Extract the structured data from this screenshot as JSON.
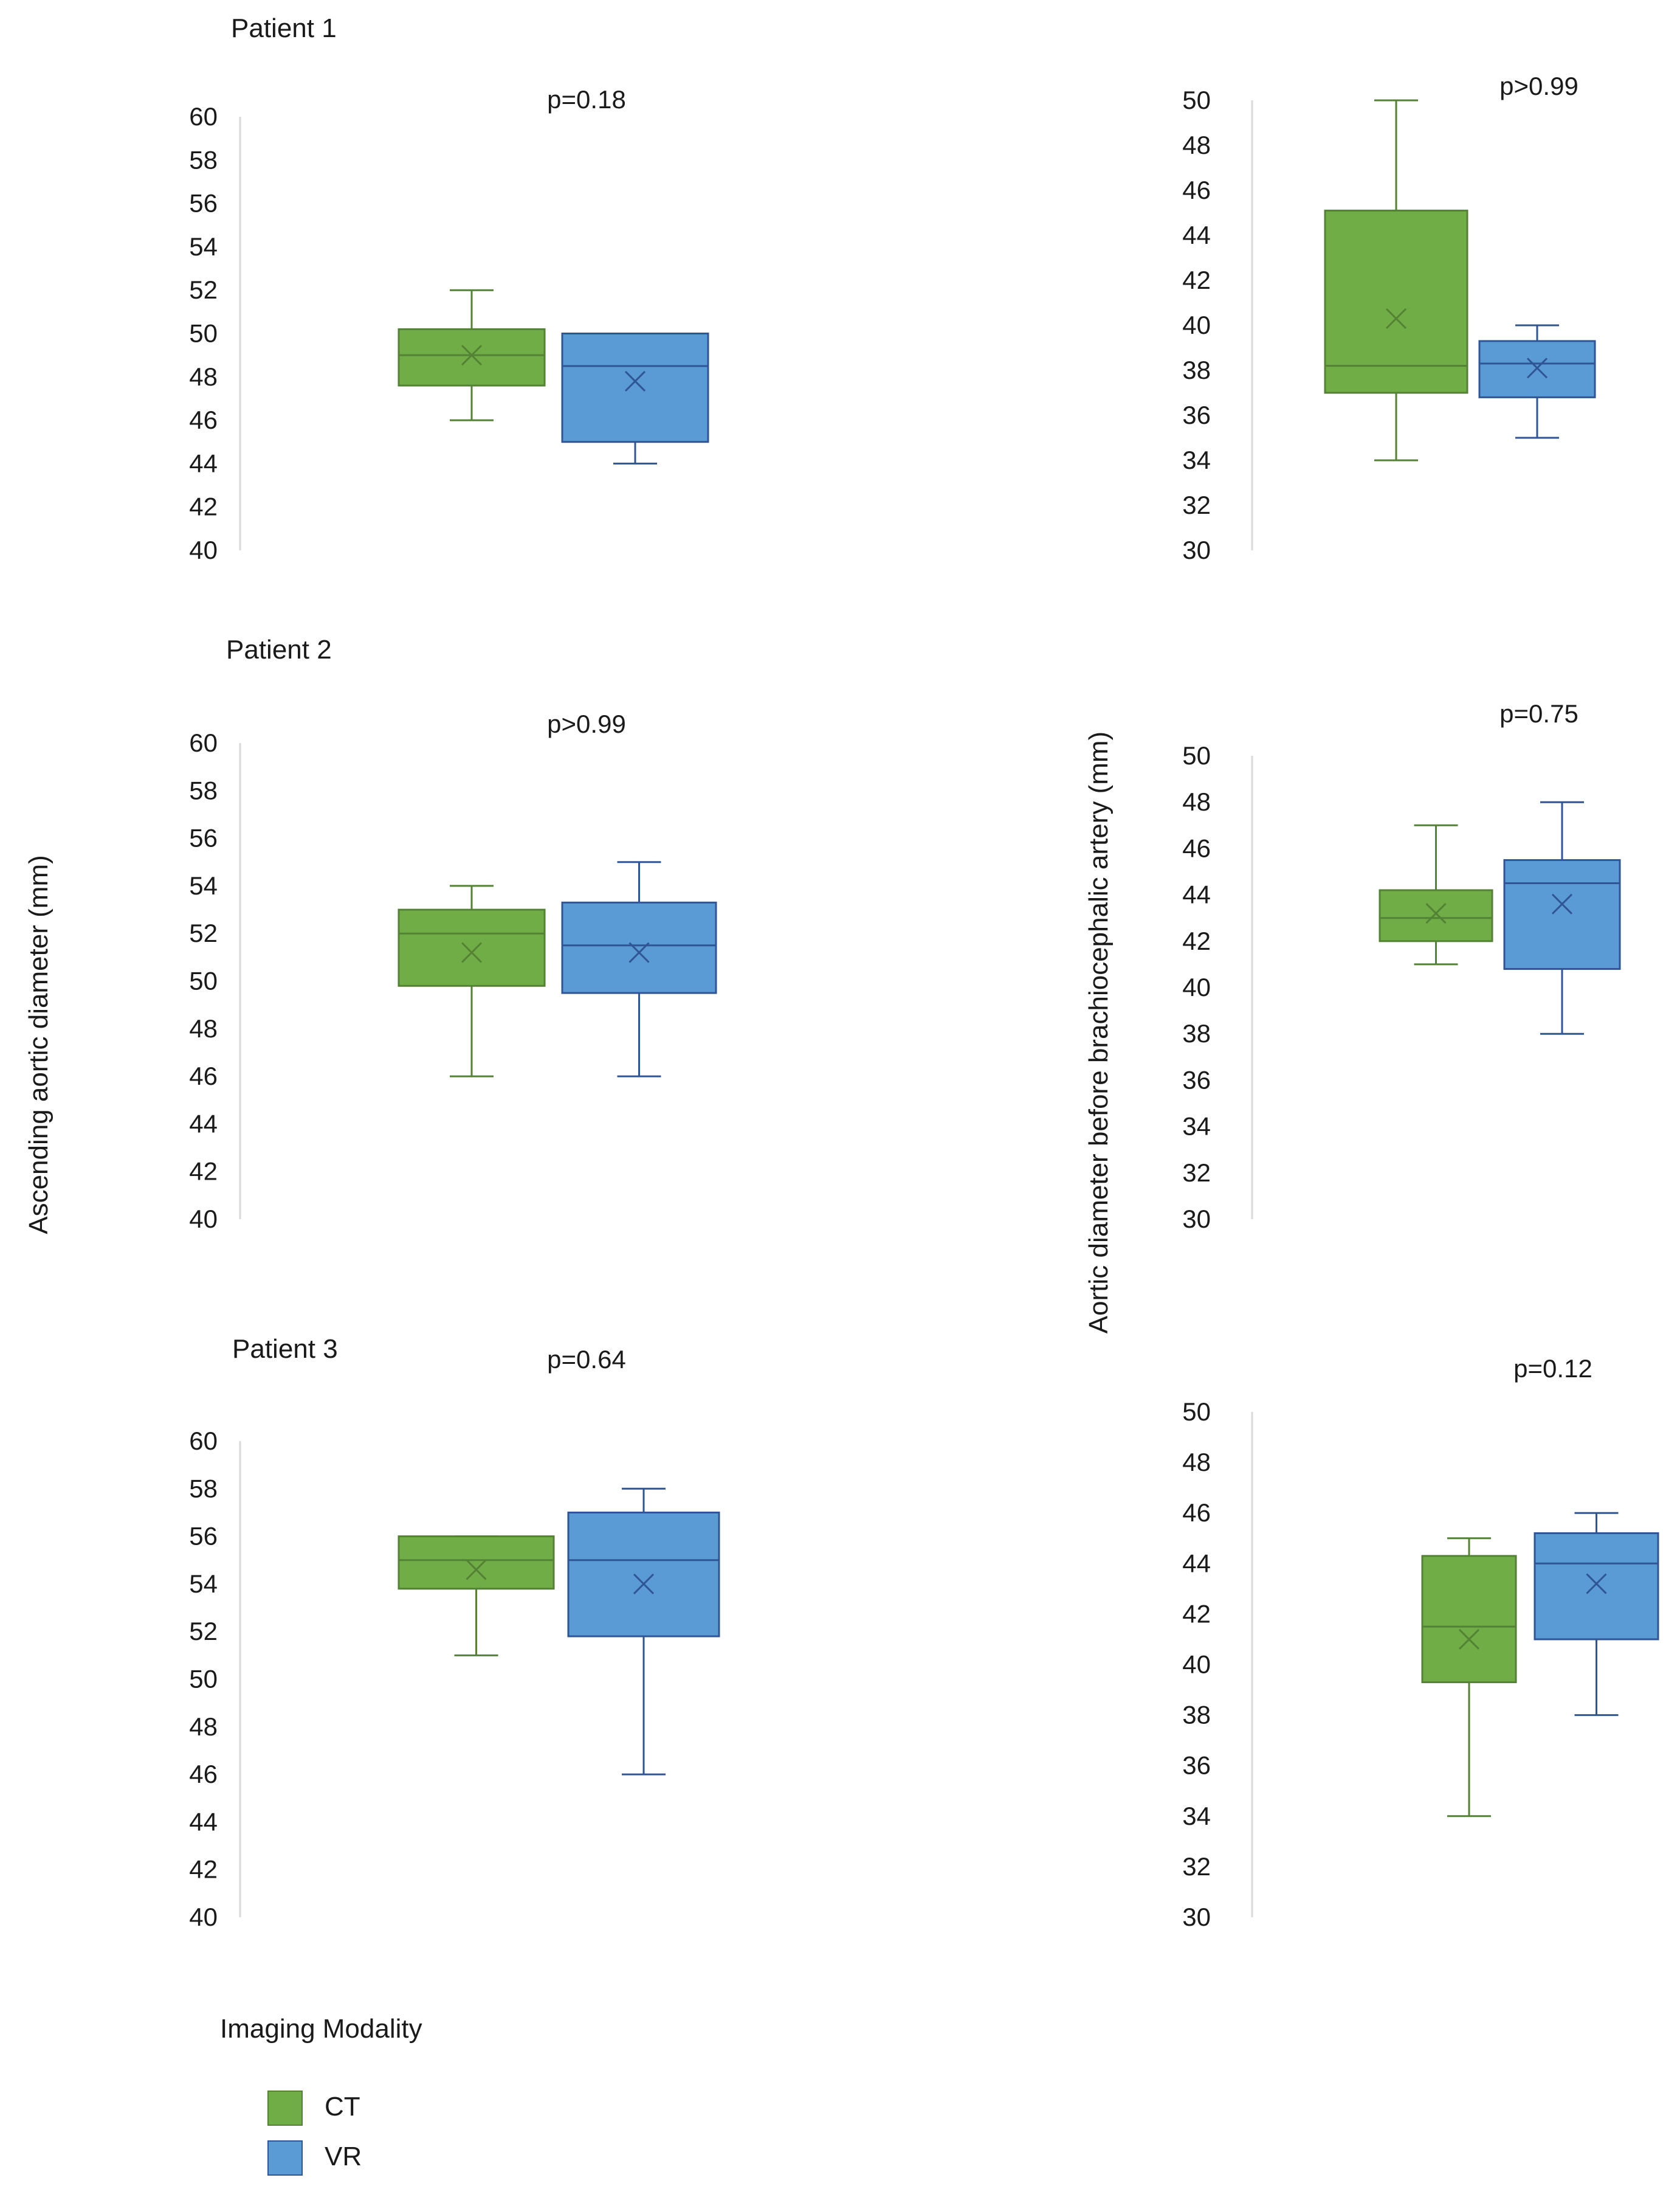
{
  "figure": {
    "left_ylabel": "Ascending aortic diameter (mm)",
    "right_ylabel": "Aortic diameter before brachiocephalic artery (mm)",
    "legend": {
      "title": "Imaging Modality",
      "items": [
        {
          "label": "CT",
          "color": "#70ad47",
          "edge": "#548235"
        },
        {
          "label": "VR",
          "color": "#5b9bd5",
          "edge": "#2f5597"
        }
      ]
    },
    "patients": [
      "Patient 1",
      "Patient 2",
      "Patient 3"
    ]
  },
  "chart_data": [
    {
      "type": "box",
      "panel": "Patient 1 - ascending",
      "annotation": "p=0.18",
      "ylabel": "Ascending aortic diameter (mm)",
      "ylim": [
        40,
        60
      ],
      "yticks": [
        40,
        42,
        44,
        46,
        48,
        50,
        52,
        54,
        56,
        58,
        60
      ],
      "series": [
        {
          "name": "CT",
          "min": 46,
          "q1": 47.6,
          "median": 49,
          "q3": 50.2,
          "max": 52,
          "mean": 49
        },
        {
          "name": "VR",
          "min": 44,
          "q1": 45,
          "median": 48.5,
          "q3": 50,
          "max": 50,
          "mean": 47.8
        }
      ]
    },
    {
      "type": "box",
      "panel": "Patient 1 - before brachiocephalic",
      "annotation": "p>0.99",
      "ylabel": "Aortic diameter before brachiocephalic artery (mm)",
      "ylim": [
        30,
        50
      ],
      "yticks": [
        30,
        32,
        34,
        36,
        38,
        40,
        42,
        44,
        46,
        48,
        50
      ],
      "series": [
        {
          "name": "CT",
          "min": 34,
          "q1": 37,
          "median": 38.2,
          "q3": 45.1,
          "max": 50,
          "mean": 40.3
        },
        {
          "name": "VR",
          "min": 35,
          "q1": 36.8,
          "median": 38.3,
          "q3": 39.3,
          "max": 40,
          "mean": 38.1
        }
      ]
    },
    {
      "type": "box",
      "panel": "Patient 2 - ascending",
      "annotation": "p>0.99",
      "ylabel": "Ascending aortic diameter (mm)",
      "ylim": [
        40,
        60
      ],
      "yticks": [
        40,
        42,
        44,
        46,
        48,
        50,
        52,
        54,
        56,
        58,
        60
      ],
      "series": [
        {
          "name": "CT",
          "min": 46,
          "q1": 49.8,
          "median": 52,
          "q3": 53,
          "max": 54,
          "mean": 51.2
        },
        {
          "name": "VR",
          "min": 46,
          "q1": 49.5,
          "median": 51.5,
          "q3": 53.3,
          "max": 55,
          "mean": 51.2
        }
      ]
    },
    {
      "type": "box",
      "panel": "Patient 2 - before brachiocephalic",
      "annotation": "p=0.75",
      "ylabel": "Aortic diameter before brachiocephalic artery (mm)",
      "ylim": [
        30,
        50
      ],
      "yticks": [
        30,
        32,
        34,
        36,
        38,
        40,
        42,
        44,
        46,
        48,
        50
      ],
      "series": [
        {
          "name": "CT",
          "min": 41,
          "q1": 42,
          "median": 43,
          "q3": 44.2,
          "max": 47,
          "mean": 43.2
        },
        {
          "name": "VR",
          "min": 38,
          "q1": 40.8,
          "median": 44.5,
          "q3": 45.5,
          "max": 48,
          "mean": 43.6
        }
      ]
    },
    {
      "type": "box",
      "panel": "Patient 3 - ascending",
      "annotation": "p=0.64",
      "ylabel": "Ascending aortic diameter (mm)",
      "ylim": [
        40,
        60
      ],
      "yticks": [
        40,
        42,
        44,
        46,
        48,
        50,
        52,
        54,
        56,
        58,
        60
      ],
      "series": [
        {
          "name": "CT",
          "min": 51,
          "q1": 53.8,
          "median": 55,
          "q3": 56,
          "max": 56,
          "mean": 54.6
        },
        {
          "name": "VR",
          "min": 46,
          "q1": 51.8,
          "median": 55,
          "q3": 57,
          "max": 58,
          "mean": 54
        }
      ]
    },
    {
      "type": "box",
      "panel": "Patient 3 - before brachiocephalic",
      "annotation": "p=0.12",
      "ylabel": "Aortic diameter before brachiocephalic artery (mm)",
      "ylim": [
        30,
        50
      ],
      "yticks": [
        30,
        32,
        34,
        36,
        38,
        40,
        42,
        44,
        46,
        48,
        50
      ],
      "series": [
        {
          "name": "CT",
          "min": 34,
          "q1": 39.3,
          "median": 41.5,
          "q3": 44.3,
          "max": 45,
          "mean": 41
        },
        {
          "name": "VR",
          "min": 38,
          "q1": 41,
          "median": 44,
          "q3": 45.2,
          "max": 46,
          "mean": 43.2
        }
      ]
    }
  ]
}
